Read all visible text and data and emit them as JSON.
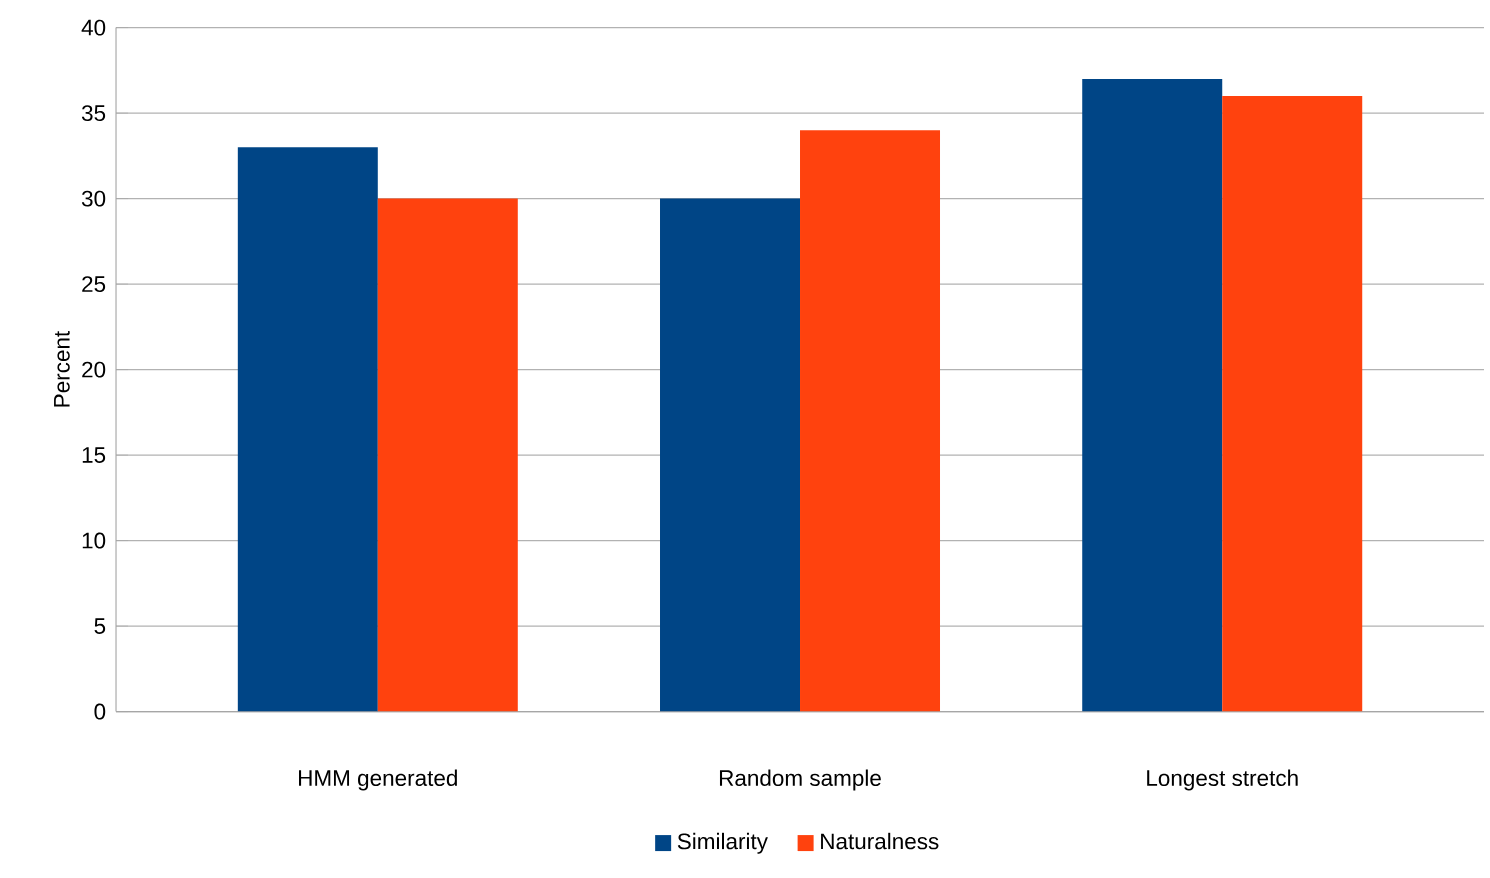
{
  "chart_data": {
    "type": "bar",
    "ylabel": "Percent",
    "categories": [
      "HMM generated",
      "Random sample",
      "Longest stretch"
    ],
    "series": [
      {
        "name": "Similarity",
        "color": "#004586",
        "values": [
          33,
          30,
          37
        ]
      },
      {
        "name": "Naturalness",
        "color": "#ff420e",
        "values": [
          30,
          34,
          36
        ]
      }
    ],
    "ylim": [
      0,
      40
    ],
    "yticks": [
      0,
      5,
      10,
      15,
      20,
      25,
      30,
      35,
      40
    ],
    "grid": "y",
    "legend": "bottom"
  }
}
